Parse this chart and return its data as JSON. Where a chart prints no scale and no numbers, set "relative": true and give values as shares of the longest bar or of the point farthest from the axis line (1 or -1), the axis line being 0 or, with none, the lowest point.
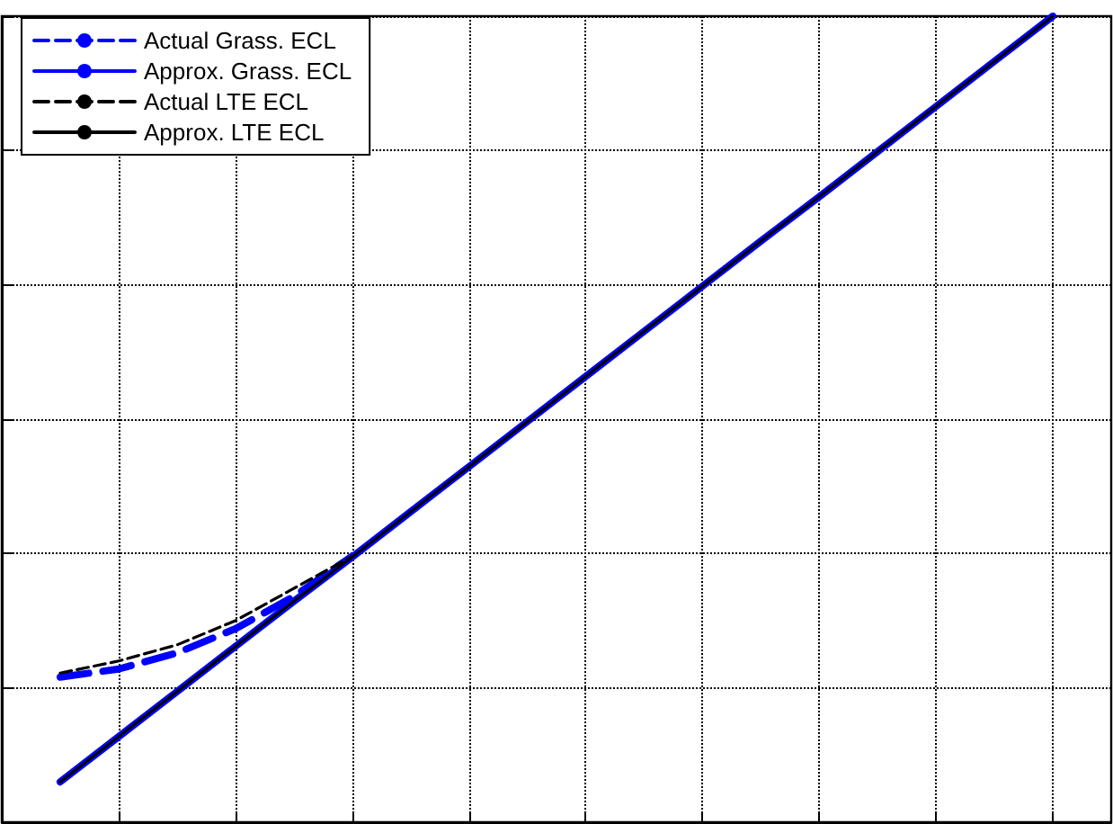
{
  "chart_data": {
    "type": "line",
    "relative": true,
    "grid": true,
    "legend": "top left",
    "tick_labels": false,
    "marker": "none",
    "categories": [
      null,
      null,
      null,
      null,
      null,
      null,
      null,
      null,
      null,
      null,
      null,
      null,
      null,
      null,
      null,
      null,
      null,
      null,
      null,
      null
    ],
    "series": [
      {
        "name": "Actual Grass. ECL",
        "color": "#0000ff",
        "line_style": "dashed",
        "values": [
          null,
          0.18,
          0.19,
          0.21,
          0.24,
          0.28,
          0.33,
          null,
          null,
          null,
          null,
          null,
          null,
          null,
          null,
          null,
          null,
          null,
          null,
          null
        ]
      },
      {
        "name": "Approx. Grass. ECL",
        "color": "#0000ff",
        "line_style": "solid",
        "values": [
          null,
          0.05,
          0.106,
          0.162,
          0.218,
          0.274,
          0.329,
          0.385,
          0.441,
          0.497,
          0.553,
          0.609,
          0.665,
          0.721,
          0.776,
          0.832,
          0.888,
          0.944,
          1.0,
          null
        ]
      },
      {
        "name": "Actual LTE ECL",
        "color": "#000000",
        "line_style": "dashed",
        "values": [
          null,
          0.185,
          0.2,
          0.22,
          0.25,
          0.29,
          0.33,
          null,
          null,
          null,
          null,
          null,
          null,
          null,
          null,
          null,
          null,
          null,
          null,
          null
        ]
      },
      {
        "name": "Approx. LTE ECL",
        "color": "#000000",
        "line_style": "solid",
        "values": [
          null,
          0.05,
          0.106,
          0.162,
          0.218,
          0.274,
          0.329,
          0.385,
          0.441,
          0.497,
          0.553,
          0.609,
          0.665,
          0.721,
          0.776,
          0.832,
          0.888,
          0.944,
          1.0,
          null
        ]
      }
    ]
  }
}
